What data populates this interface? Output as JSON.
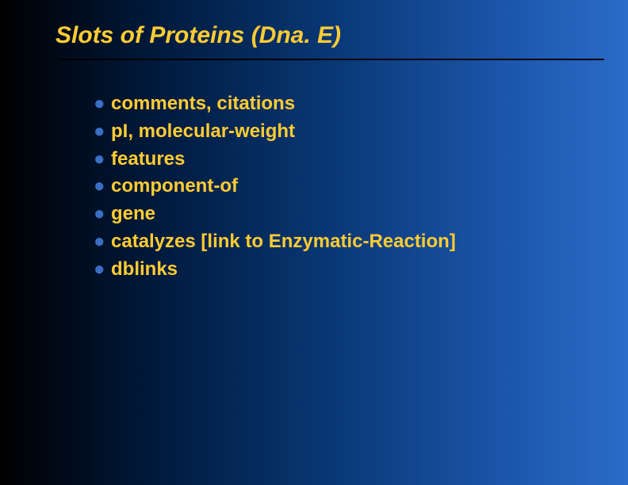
{
  "slide": {
    "title": "Slots of Proteins  (Dna. E)",
    "title_color": "#ffcc33",
    "title_fontsize": 30,
    "title_style": "italic bold",
    "divider_color": "#000000",
    "background_gradient": {
      "direction": "to right",
      "stops": [
        "#000000",
        "#000814",
        "#001a3d",
        "#0a3a7a",
        "#1f5bb3",
        "#2a6cc8"
      ]
    },
    "bullet_color": "#3a6fc4",
    "text_color": "#ffcc33",
    "item_fontsize": 24,
    "items": [
      {
        "text": "comments, citations"
      },
      {
        "text": "pI, molecular-weight"
      },
      {
        "text": "features"
      },
      {
        "text": "component-of"
      },
      {
        "text": "gene"
      },
      {
        "text": "catalyzes   [link to Enzymatic-Reaction]"
      },
      {
        "text": "dblinks"
      }
    ]
  }
}
